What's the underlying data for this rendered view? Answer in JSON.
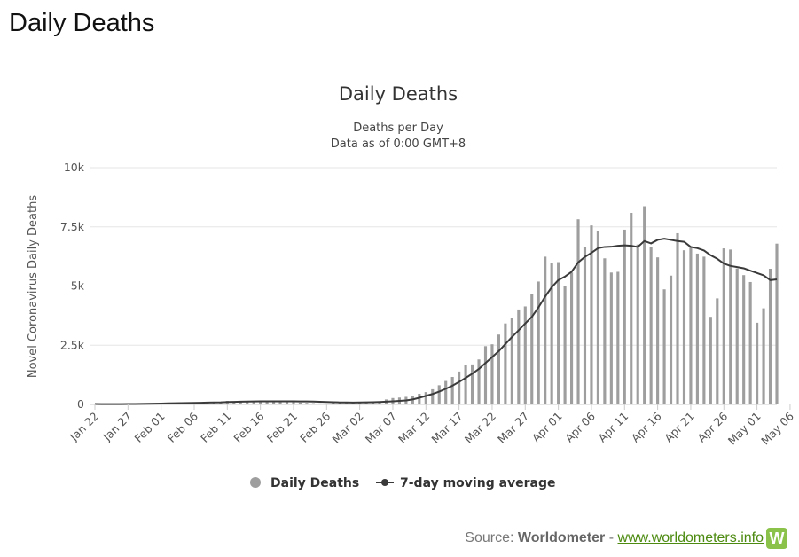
{
  "page": {
    "heading": "Daily Deaths"
  },
  "source": {
    "prefix": "Source: ",
    "name": "Worldometer",
    "separator": " - ",
    "link_text": "www.worldometers.info",
    "logo_letter": "W"
  },
  "colors": {
    "bars": "#9e9e9e",
    "line": "#3a3a3a",
    "grid": "#e6e6e6",
    "logo": "#8bc34a",
    "link": "#4c8a10"
  },
  "chart_data": {
    "type": "bar",
    "title": "Daily Deaths",
    "subtitle": [
      "Deaths per Day",
      "Data as of 0:00 GMT+8"
    ],
    "xlabel": "",
    "ylabel": "Novel Coronavirus Daily Deaths",
    "ylim": [
      0,
      10000
    ],
    "y_ticks": [
      0,
      2500,
      5000,
      7500,
      10000
    ],
    "y_tick_labels": [
      "0",
      "2.5k",
      "5k",
      "7.5k",
      "10k"
    ],
    "x_tick_labels": [
      "Jan 22",
      "Jan 27",
      "Feb 01",
      "Feb 06",
      "Feb 11",
      "Feb 16",
      "Feb 21",
      "Feb 26",
      "Mar 02",
      "Mar 07",
      "Mar 12",
      "Mar 17",
      "Mar 22",
      "Mar 27",
      "Apr 01",
      "Apr 06",
      "Apr 11",
      "Apr 16",
      "Apr 21",
      "Apr 26",
      "May 01",
      "May 06"
    ],
    "grid": true,
    "legend_position": "bottom-center",
    "series": [
      {
        "name": "Daily Deaths",
        "type": "bar",
        "values": [
          17,
          8,
          16,
          14,
          26,
          26,
          38,
          43,
          46,
          45,
          57,
          64,
          65,
          73,
          73,
          86,
          89,
          97,
          108,
          97,
          146,
          122,
          143,
          143,
          142,
          106,
          98,
          139,
          116,
          124,
          100,
          80,
          67,
          52,
          43,
          22,
          70,
          58,
          80,
          60,
          74,
          97,
          110,
          130,
          210,
          270,
          290,
          320,
          350,
          450,
          520,
          640,
          810,
          990,
          1160,
          1390,
          1650,
          1690,
          1900,
          2460,
          2540,
          2950,
          3420,
          3650,
          4010,
          4140,
          4650,
          5190,
          6240,
          5980,
          6010,
          5010,
          5570,
          7820,
          6660,
          7560,
          7320,
          6170,
          5570,
          5600,
          7380,
          8090,
          6750,
          8370,
          6640,
          6210,
          4860,
          5440,
          7230,
          6510,
          6650,
          6370,
          6240,
          3700,
          4480,
          6590,
          6540,
          5740,
          5460,
          5170,
          3450,
          4060,
          5730,
          6790
        ]
      },
      {
        "name": "7-day moving average",
        "type": "line",
        "values": [
          17,
          13,
          14,
          14,
          16,
          18,
          21,
          25,
          29,
          33,
          39,
          45,
          51,
          56,
          61,
          67,
          72,
          79,
          86,
          90,
          101,
          108,
          115,
          122,
          128,
          129,
          130,
          131,
          130,
          131,
          130,
          128,
          125,
          121,
          113,
          102,
          93,
          86,
          83,
          81,
          83,
          88,
          96,
          105,
          119,
          133,
          149,
          168,
          210,
          280,
          360,
          440,
          540,
          660,
          790,
          950,
          1120,
          1300,
          1500,
          1750,
          2000,
          2250,
          2550,
          2850,
          3130,
          3420,
          3700,
          4100,
          4550,
          4950,
          5250,
          5400,
          5600,
          6000,
          6230,
          6400,
          6600,
          6650,
          6660,
          6700,
          6720,
          6700,
          6650,
          6900,
          6800,
          6950,
          7000,
          6950,
          6900,
          6870,
          6650,
          6600,
          6500,
          6300,
          6150,
          5950,
          5850,
          5800,
          5750,
          5650,
          5550,
          5450,
          5250,
          5280
        ]
      }
    ],
    "start_date": "Jan 22"
  }
}
